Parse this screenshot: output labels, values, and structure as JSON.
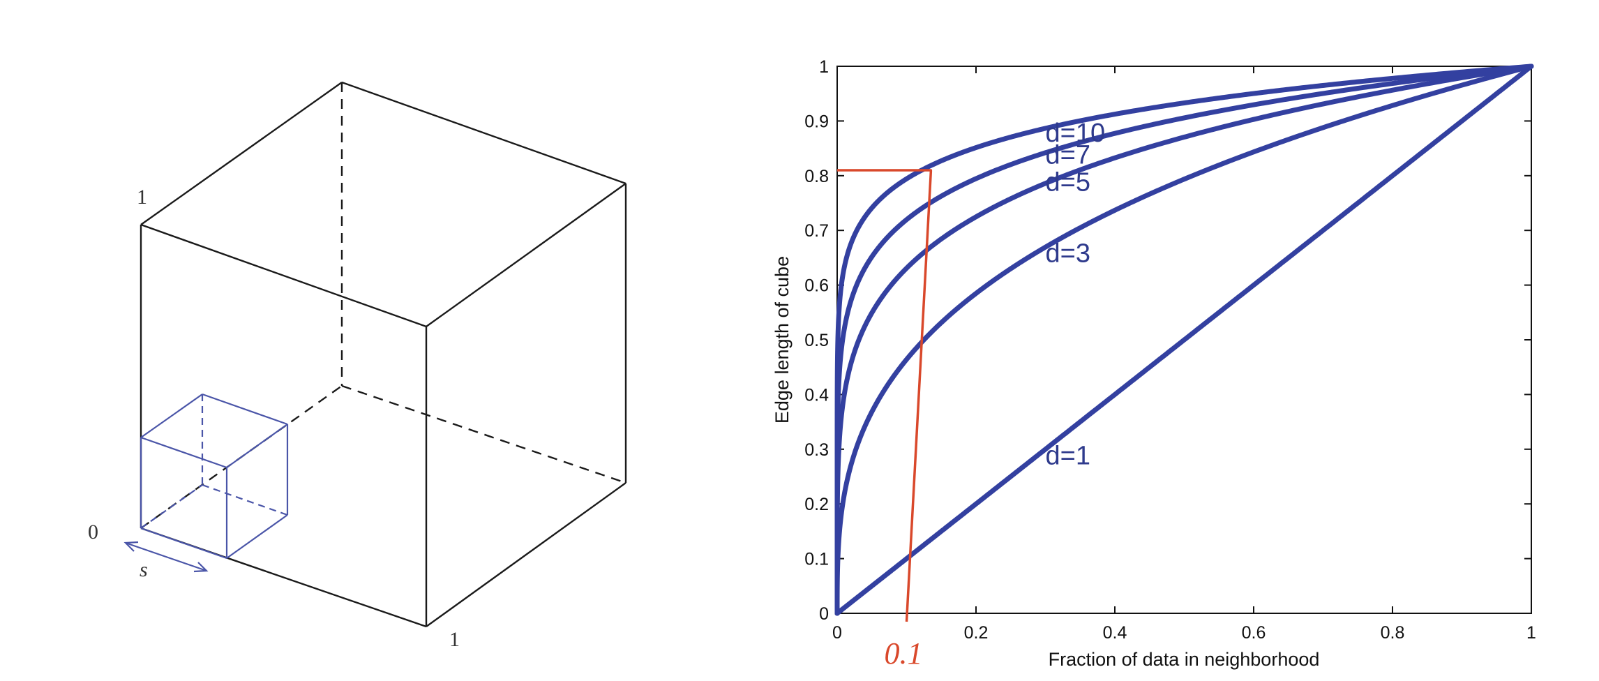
{
  "cube_diagram": {
    "label_top": "1",
    "label_origin": "0",
    "label_right": "1",
    "label_s": "s"
  },
  "chart_data": {
    "type": "line",
    "title": "",
    "xlabel": "Fraction of data in neighborhood",
    "ylabel": "Edge length of cube",
    "xlim": [
      0,
      1
    ],
    "ylim": [
      0,
      1
    ],
    "xticks": [
      "0",
      "0.2",
      "0.4",
      "0.6",
      "0.8",
      "1"
    ],
    "yticks": [
      "0",
      "0.1",
      "0.2",
      "0.3",
      "0.4",
      "0.5",
      "0.6",
      "0.7",
      "0.8",
      "0.9",
      "1"
    ],
    "grid": false,
    "legend": "none",
    "series_color": "#3340a0",
    "series": [
      {
        "name": "d=1",
        "exponent": 1,
        "label_at": [
          0.3,
          0.29
        ]
      },
      {
        "name": "d=3",
        "exponent": 3,
        "label_at": [
          0.3,
          0.66
        ]
      },
      {
        "name": "d=5",
        "exponent": 5,
        "label_at": [
          0.3,
          0.79
        ]
      },
      {
        "name": "d=7",
        "exponent": 7,
        "label_at": [
          0.3,
          0.84
        ]
      },
      {
        "name": "d=10",
        "exponent": 10,
        "label_at": [
          0.3,
          0.88
        ]
      }
    ],
    "annotation": {
      "color": "#d9482b",
      "text": "0.1",
      "horizontal_y": 0.81,
      "horizontal_x_end": 0.135,
      "vertical_top_x": 0.135,
      "vertical_bottom_x": 0.1
    }
  }
}
